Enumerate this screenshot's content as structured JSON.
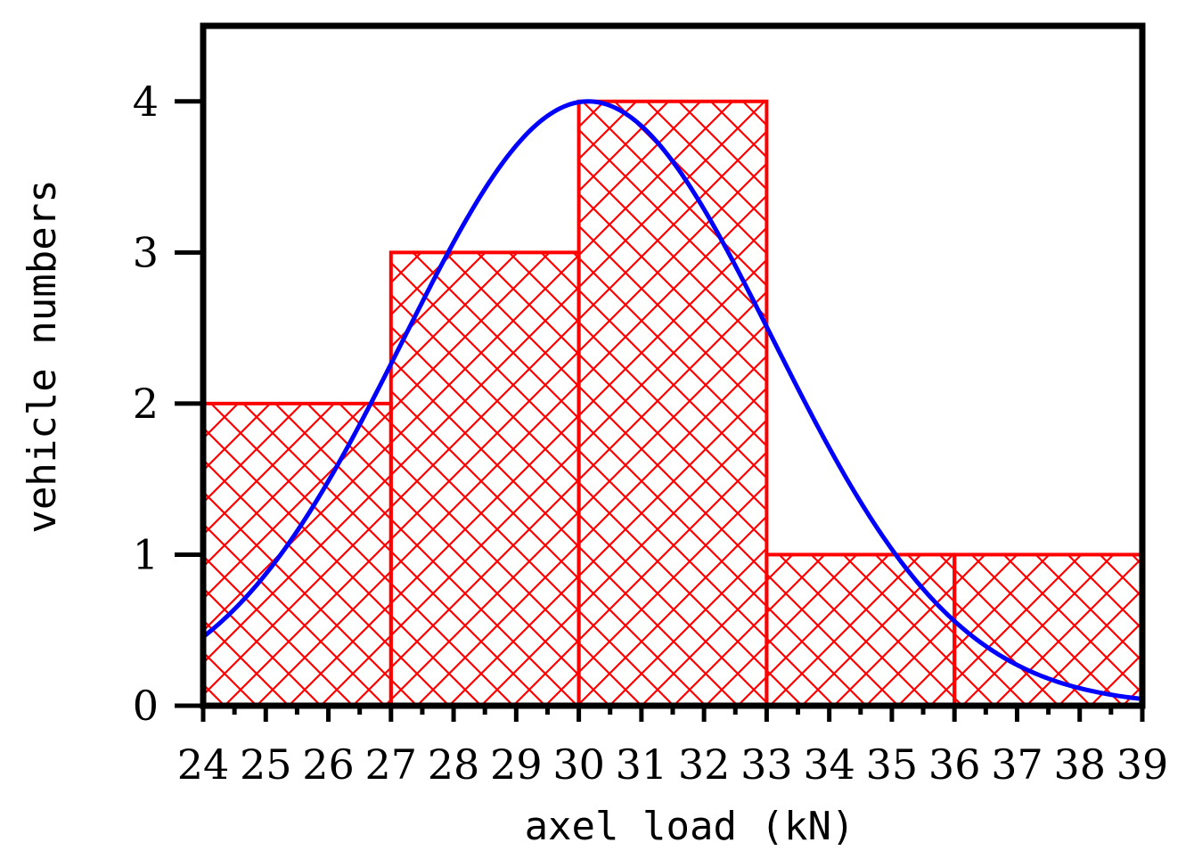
{
  "chart_data": {
    "type": "bar",
    "title": "",
    "xlabel": "axel load (kN)",
    "ylabel": "vehicle numbers",
    "xlim": [
      24,
      39
    ],
    "ylim": [
      0,
      4.5
    ],
    "xticks": [
      "24",
      "25",
      "26",
      "27",
      "28",
      "29",
      "30",
      "31",
      "32",
      "33",
      "34",
      "35",
      "36",
      "37",
      "38",
      "39"
    ],
    "yticks": [
      "0",
      "1",
      "2",
      "3",
      "4"
    ],
    "bins": [
      {
        "start": 24,
        "end": 27,
        "value": 2
      },
      {
        "start": 27,
        "end": 30,
        "value": 3
      },
      {
        "start": 30,
        "end": 33,
        "value": 4
      },
      {
        "start": 33,
        "end": 36,
        "value": 1
      },
      {
        "start": 36,
        "end": 39,
        "value": 1
      }
    ],
    "fit_curve": {
      "type": "normal",
      "mean": 30.15,
      "sd": 2.95,
      "peak": 4.0
    },
    "colors": {
      "bars": "#ff0000",
      "curve": "#0000ff",
      "axes": "#000000"
    },
    "hatch": "crosshatch",
    "grid": false,
    "legend": "none"
  }
}
